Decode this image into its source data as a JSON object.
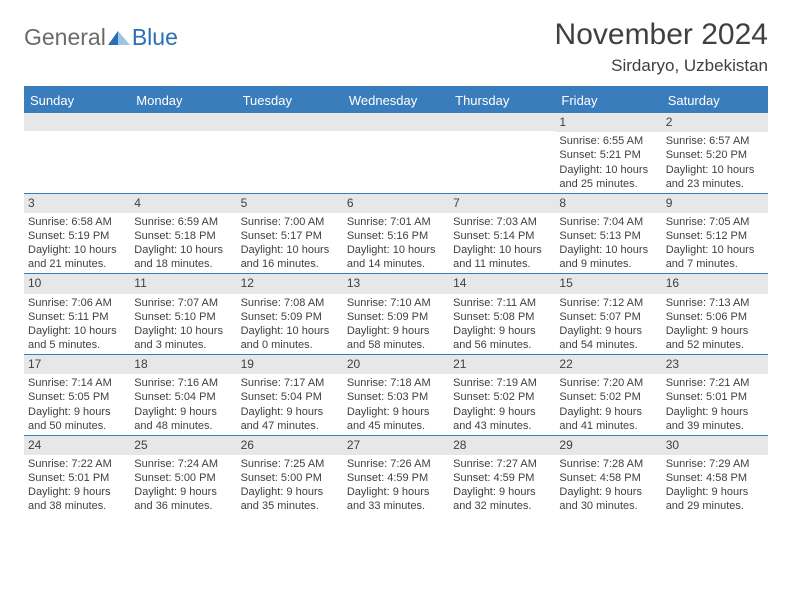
{
  "logo": {
    "general": "General",
    "blue": "Blue"
  },
  "title": "November 2024",
  "location": "Sirdaryo, Uzbekistan",
  "theme": {
    "accent": "#3a7dbd",
    "header_text": "#ffffff",
    "daynum_bg": "#e7e7e7",
    "text": "#404040",
    "logo_gray": "#6b6b6b",
    "logo_blue": "#2a6fb5"
  },
  "dayHeaders": [
    "Sunday",
    "Monday",
    "Tuesday",
    "Wednesday",
    "Thursday",
    "Friday",
    "Saturday"
  ],
  "weeks": [
    [
      {
        "day": "",
        "sunrise": "",
        "sunset": "",
        "daylight1": "",
        "daylight2": ""
      },
      {
        "day": "",
        "sunrise": "",
        "sunset": "",
        "daylight1": "",
        "daylight2": ""
      },
      {
        "day": "",
        "sunrise": "",
        "sunset": "",
        "daylight1": "",
        "daylight2": ""
      },
      {
        "day": "",
        "sunrise": "",
        "sunset": "",
        "daylight1": "",
        "daylight2": ""
      },
      {
        "day": "",
        "sunrise": "",
        "sunset": "",
        "daylight1": "",
        "daylight2": ""
      },
      {
        "day": "1",
        "sunrise": "Sunrise: 6:55 AM",
        "sunset": "Sunset: 5:21 PM",
        "daylight1": "Daylight: 10 hours",
        "daylight2": "and 25 minutes."
      },
      {
        "day": "2",
        "sunrise": "Sunrise: 6:57 AM",
        "sunset": "Sunset: 5:20 PM",
        "daylight1": "Daylight: 10 hours",
        "daylight2": "and 23 minutes."
      }
    ],
    [
      {
        "day": "3",
        "sunrise": "Sunrise: 6:58 AM",
        "sunset": "Sunset: 5:19 PM",
        "daylight1": "Daylight: 10 hours",
        "daylight2": "and 21 minutes."
      },
      {
        "day": "4",
        "sunrise": "Sunrise: 6:59 AM",
        "sunset": "Sunset: 5:18 PM",
        "daylight1": "Daylight: 10 hours",
        "daylight2": "and 18 minutes."
      },
      {
        "day": "5",
        "sunrise": "Sunrise: 7:00 AM",
        "sunset": "Sunset: 5:17 PM",
        "daylight1": "Daylight: 10 hours",
        "daylight2": "and 16 minutes."
      },
      {
        "day": "6",
        "sunrise": "Sunrise: 7:01 AM",
        "sunset": "Sunset: 5:16 PM",
        "daylight1": "Daylight: 10 hours",
        "daylight2": "and 14 minutes."
      },
      {
        "day": "7",
        "sunrise": "Sunrise: 7:03 AM",
        "sunset": "Sunset: 5:14 PM",
        "daylight1": "Daylight: 10 hours",
        "daylight2": "and 11 minutes."
      },
      {
        "day": "8",
        "sunrise": "Sunrise: 7:04 AM",
        "sunset": "Sunset: 5:13 PM",
        "daylight1": "Daylight: 10 hours",
        "daylight2": "and 9 minutes."
      },
      {
        "day": "9",
        "sunrise": "Sunrise: 7:05 AM",
        "sunset": "Sunset: 5:12 PM",
        "daylight1": "Daylight: 10 hours",
        "daylight2": "and 7 minutes."
      }
    ],
    [
      {
        "day": "10",
        "sunrise": "Sunrise: 7:06 AM",
        "sunset": "Sunset: 5:11 PM",
        "daylight1": "Daylight: 10 hours",
        "daylight2": "and 5 minutes."
      },
      {
        "day": "11",
        "sunrise": "Sunrise: 7:07 AM",
        "sunset": "Sunset: 5:10 PM",
        "daylight1": "Daylight: 10 hours",
        "daylight2": "and 3 minutes."
      },
      {
        "day": "12",
        "sunrise": "Sunrise: 7:08 AM",
        "sunset": "Sunset: 5:09 PM",
        "daylight1": "Daylight: 10 hours",
        "daylight2": "and 0 minutes."
      },
      {
        "day": "13",
        "sunrise": "Sunrise: 7:10 AM",
        "sunset": "Sunset: 5:09 PM",
        "daylight1": "Daylight: 9 hours",
        "daylight2": "and 58 minutes."
      },
      {
        "day": "14",
        "sunrise": "Sunrise: 7:11 AM",
        "sunset": "Sunset: 5:08 PM",
        "daylight1": "Daylight: 9 hours",
        "daylight2": "and 56 minutes."
      },
      {
        "day": "15",
        "sunrise": "Sunrise: 7:12 AM",
        "sunset": "Sunset: 5:07 PM",
        "daylight1": "Daylight: 9 hours",
        "daylight2": "and 54 minutes."
      },
      {
        "day": "16",
        "sunrise": "Sunrise: 7:13 AM",
        "sunset": "Sunset: 5:06 PM",
        "daylight1": "Daylight: 9 hours",
        "daylight2": "and 52 minutes."
      }
    ],
    [
      {
        "day": "17",
        "sunrise": "Sunrise: 7:14 AM",
        "sunset": "Sunset: 5:05 PM",
        "daylight1": "Daylight: 9 hours",
        "daylight2": "and 50 minutes."
      },
      {
        "day": "18",
        "sunrise": "Sunrise: 7:16 AM",
        "sunset": "Sunset: 5:04 PM",
        "daylight1": "Daylight: 9 hours",
        "daylight2": "and 48 minutes."
      },
      {
        "day": "19",
        "sunrise": "Sunrise: 7:17 AM",
        "sunset": "Sunset: 5:04 PM",
        "daylight1": "Daylight: 9 hours",
        "daylight2": "and 47 minutes."
      },
      {
        "day": "20",
        "sunrise": "Sunrise: 7:18 AM",
        "sunset": "Sunset: 5:03 PM",
        "daylight1": "Daylight: 9 hours",
        "daylight2": "and 45 minutes."
      },
      {
        "day": "21",
        "sunrise": "Sunrise: 7:19 AM",
        "sunset": "Sunset: 5:02 PM",
        "daylight1": "Daylight: 9 hours",
        "daylight2": "and 43 minutes."
      },
      {
        "day": "22",
        "sunrise": "Sunrise: 7:20 AM",
        "sunset": "Sunset: 5:02 PM",
        "daylight1": "Daylight: 9 hours",
        "daylight2": "and 41 minutes."
      },
      {
        "day": "23",
        "sunrise": "Sunrise: 7:21 AM",
        "sunset": "Sunset: 5:01 PM",
        "daylight1": "Daylight: 9 hours",
        "daylight2": "and 39 minutes."
      }
    ],
    [
      {
        "day": "24",
        "sunrise": "Sunrise: 7:22 AM",
        "sunset": "Sunset: 5:01 PM",
        "daylight1": "Daylight: 9 hours",
        "daylight2": "and 38 minutes."
      },
      {
        "day": "25",
        "sunrise": "Sunrise: 7:24 AM",
        "sunset": "Sunset: 5:00 PM",
        "daylight1": "Daylight: 9 hours",
        "daylight2": "and 36 minutes."
      },
      {
        "day": "26",
        "sunrise": "Sunrise: 7:25 AM",
        "sunset": "Sunset: 5:00 PM",
        "daylight1": "Daylight: 9 hours",
        "daylight2": "and 35 minutes."
      },
      {
        "day": "27",
        "sunrise": "Sunrise: 7:26 AM",
        "sunset": "Sunset: 4:59 PM",
        "daylight1": "Daylight: 9 hours",
        "daylight2": "and 33 minutes."
      },
      {
        "day": "28",
        "sunrise": "Sunrise: 7:27 AM",
        "sunset": "Sunset: 4:59 PM",
        "daylight1": "Daylight: 9 hours",
        "daylight2": "and 32 minutes."
      },
      {
        "day": "29",
        "sunrise": "Sunrise: 7:28 AM",
        "sunset": "Sunset: 4:58 PM",
        "daylight1": "Daylight: 9 hours",
        "daylight2": "and 30 minutes."
      },
      {
        "day": "30",
        "sunrise": "Sunrise: 7:29 AM",
        "sunset": "Sunset: 4:58 PM",
        "daylight1": "Daylight: 9 hours",
        "daylight2": "and 29 minutes."
      }
    ]
  ]
}
